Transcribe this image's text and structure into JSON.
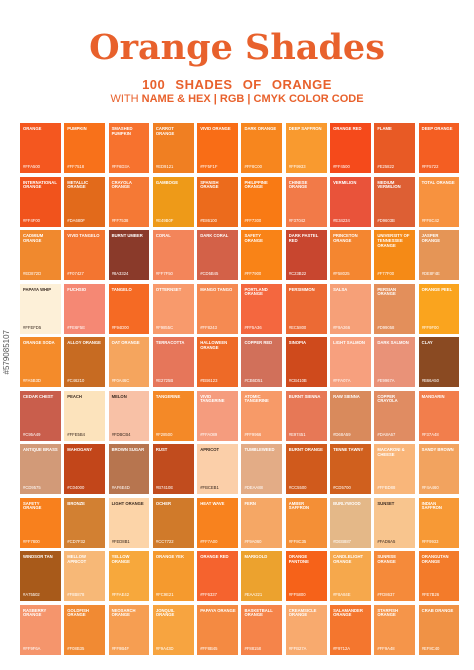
{
  "header": {
    "title": "Orange Shades",
    "count": "100",
    "subtitle": "SHADES OF ORANGE",
    "with_label": "WITH",
    "codes_label": "NAME & HEX | RGB | CMYK COLOR CODE"
  },
  "stock_id": "#579085107",
  "swatches": [
    {
      "name": "ORANGE",
      "hex": "#FFA500",
      "color": "#f4571f",
      "light": false
    },
    {
      "name": "PUMPKIN",
      "hex": "#FF7518",
      "color": "#f8711a",
      "light": false
    },
    {
      "name": "SMASHED PUMPKIN",
      "hex": "#FF6D3A",
      "color": "#f7722e",
      "light": false
    },
    {
      "name": "CARROT ORANGE",
      "hex": "#ED9121",
      "color": "#f07f22",
      "light": false
    },
    {
      "name": "VIVID ORANGE",
      "hex": "#FF5F1F",
      "color": "#f96d16",
      "light": false
    },
    {
      "name": "DARK ORANGE",
      "hex": "#FF8C00",
      "color": "#f7861e",
      "light": false
    },
    {
      "name": "DEEP SAFFRON",
      "hex": "#FF9933",
      "color": "#f99a2f",
      "light": false
    },
    {
      "name": "ORANGE RED",
      "hex": "#FF4500",
      "color": "#f54a1b",
      "light": false
    },
    {
      "name": "FLAME",
      "hex": "#E25822",
      "color": "#e85a25",
      "light": false
    },
    {
      "name": "DEEP ORANGE",
      "hex": "#FF5722",
      "color": "#f45e22",
      "light": false
    },
    {
      "name": "INTERNATIONAL ORANGE",
      "hex": "#FF4F00",
      "color": "#f1531c",
      "light": false
    },
    {
      "name": "METALLIC ORANGE",
      "hex": "#DA680F",
      "color": "#e26a1b",
      "light": false
    },
    {
      "name": "CRAYOLA ORANGE",
      "hex": "#FF7538",
      "color": "#f57935",
      "light": false
    },
    {
      "name": "GAMBOGE",
      "hex": "#E49B0F",
      "color": "#ee9a18",
      "light": false
    },
    {
      "name": "SPANISH ORANGE",
      "hex": "#E86100",
      "color": "#ec6b1c",
      "light": false
    },
    {
      "name": "PHILIPPINE ORANGE",
      "hex": "#FF7300",
      "color": "#f97a14",
      "light": false
    },
    {
      "name": "CHINESE ORANGE",
      "hex": "#F37042",
      "color": "#f27a48",
      "light": false
    },
    {
      "name": "VERMILION",
      "hex": "#E34234",
      "color": "#e9533a",
      "light": false
    },
    {
      "name": "MEDIUM VERMILION",
      "hex": "#D9603B",
      "color": "#dd5f34",
      "light": false
    },
    {
      "name": "TOTAL ORANGE",
      "hex": "#FF8C42",
      "color": "#f7923f",
      "light": false
    },
    {
      "name": "CADMIUM ORANGE",
      "hex": "#ED872D",
      "color": "#f0892e",
      "light": false
    },
    {
      "name": "VIVID TANGELO",
      "hex": "#F07427",
      "color": "#f37530",
      "light": false
    },
    {
      "name": "BURNT UMBER",
      "hex": "#8A3324",
      "color": "#8a3a2a",
      "light": false
    },
    {
      "name": "CORAL",
      "hex": "#FF7F50",
      "color": "#f3855a",
      "light": false
    },
    {
      "name": "DARK CORAL",
      "hex": "#CD5B45",
      "color": "#d36148",
      "light": false
    },
    {
      "name": "SAFETY ORANGE",
      "hex": "#FF7900",
      "color": "#f98317",
      "light": false
    },
    {
      "name": "DARK PASTEL RED",
      "hex": "#C23B22",
      "color": "#c8462f",
      "light": false
    },
    {
      "name": "PRINCETON ORANGE",
      "hex": "#F58025",
      "color": "#f48630",
      "light": false
    },
    {
      "name": "UNIVERSITY OF TENNESSEE ORANGE",
      "hex": "#F77F00",
      "color": "#f58a16",
      "light": false
    },
    {
      "name": "JASPER ORANGE",
      "hex": "#DE8F4E",
      "color": "#e59556",
      "light": false
    },
    {
      "name": "PAPAYA WHIP",
      "hex": "#FFEFD5",
      "color": "#fdf0d8",
      "light": true
    },
    {
      "name": "FUCHSIO",
      "hex": "#FE6F5E",
      "color": "#f58874",
      "light": false
    },
    {
      "name": "TANGELO",
      "hex": "#F94D00",
      "color": "#f56a24",
      "light": false
    },
    {
      "name": "OTTERNSET",
      "hex": "#F9855C",
      "color": "#f89a6c",
      "light": false
    },
    {
      "name": "MANGO TANGO",
      "hex": "#FF8243",
      "color": "#f58a52",
      "light": false
    },
    {
      "name": "PORTLAND ORANGE",
      "hex": "#FF5A36",
      "color": "#f4673f",
      "light": false
    },
    {
      "name": "PERSIMMON",
      "hex": "#EC5800",
      "color": "#ec6a34",
      "light": false
    },
    {
      "name": "SALSA",
      "hex": "#F9A266",
      "color": "#f6a078",
      "light": false
    },
    {
      "name": "PERSIAN ORANGE",
      "hex": "#D99058",
      "color": "#e38f5b",
      "light": false
    },
    {
      "name": "ORANGE PEEL",
      "hex": "#FF9F00",
      "color": "#faa41e",
      "light": false
    },
    {
      "name": "ORANGE SODA",
      "hex": "#FA5B3D",
      "color": "#f48b2a",
      "light": false
    },
    {
      "name": "ALLOY ORANGE",
      "hex": "#C46210",
      "color": "#c76b22",
      "light": false
    },
    {
      "name": "OAT ORANGE",
      "hex": "#F0A46C",
      "color": "#f5a55e",
      "light": false
    },
    {
      "name": "TERRACOTTA",
      "hex": "#E2725B",
      "color": "#e6765a",
      "light": false
    },
    {
      "name": "HALLOWEEN ORANGE",
      "hex": "#EB6123",
      "color": "#ee6a27",
      "light": false
    },
    {
      "name": "COPPER RED",
      "hex": "#CB6D51",
      "color": "#d1705a",
      "light": false
    },
    {
      "name": "SINOPIA",
      "hex": "#CB410B",
      "color": "#cf4a1c",
      "light": false
    },
    {
      "name": "LIGHT SALMON",
      "hex": "#FFA07A",
      "color": "#f7a07e",
      "light": false
    },
    {
      "name": "DARK SALMON",
      "hex": "#E9967A",
      "color": "#e99278",
      "light": false
    },
    {
      "name": "CLAY",
      "hex": "#B66A50",
      "color": "#8a4a22",
      "light": false
    },
    {
      "name": "CEDAR CHEST",
      "hex": "#C95A49",
      "color": "#c95e4c",
      "light": false
    },
    {
      "name": "PEACH",
      "hex": "#FFE5B4",
      "color": "#fce3bc",
      "light": true
    },
    {
      "name": "MELON",
      "hex": "#FDBCB4",
      "color": "#f8c1a6",
      "light": true
    },
    {
      "name": "TANGERINE",
      "hex": "#F28500",
      "color": "#f48927",
      "light": false
    },
    {
      "name": "VIVID TANGERINE",
      "hex": "#FFA089",
      "color": "#f59c7e",
      "light": false
    },
    {
      "name": "ATOMIC TANGERINE",
      "hex": "#FF9966",
      "color": "#f79a68",
      "light": false
    },
    {
      "name": "BURNT SIENNA",
      "hex": "#E97451",
      "color": "#e77856",
      "light": false
    },
    {
      "name": "RAW SIENNA",
      "hex": "#D68A59",
      "color": "#d98a5c",
      "light": false
    },
    {
      "name": "COPPER CRAYOLA",
      "hex": "#DA8A67",
      "color": "#e08c62",
      "light": false
    },
    {
      "name": "MANDARIN",
      "hex": "#F37A48",
      "color": "#f27e4c",
      "light": false
    },
    {
      "name": "ANTIQUE BRASS",
      "hex": "#CD9575",
      "color": "#d29a78",
      "light": false
    },
    {
      "name": "MAHOGANY",
      "hex": "#C04000",
      "color": "#c2461a",
      "light": false
    },
    {
      "name": "BROWN SUGAR",
      "hex": "#AF6E4D",
      "color": "#b7754f",
      "light": false
    },
    {
      "name": "RUST",
      "hex": "#B7410E",
      "color": "#c14c1e",
      "light": false
    },
    {
      "name": "APRICOT",
      "hex": "#FBCEB1",
      "color": "#fbcfa9",
      "light": true
    },
    {
      "name": "TUMBLEWEED",
      "hex": "#DEAA88",
      "color": "#e3ac86",
      "light": false
    },
    {
      "name": "BURNT ORANGE",
      "hex": "#CC5500",
      "color": "#d05a1c",
      "light": false
    },
    {
      "name": "TENNE TAWNY",
      "hex": "#CD5700",
      "color": "#d0601e",
      "light": false
    },
    {
      "name": "MACARONI & CHEESE",
      "hex": "#FFBD88",
      "color": "#f9b67a",
      "light": false
    },
    {
      "name": "SANDY BROWN",
      "hex": "#F4A460",
      "color": "#f2a35f",
      "light": false
    },
    {
      "name": "SAFETY ORANGE",
      "hex": "#FF7800",
      "color": "#f8801d",
      "light": false
    },
    {
      "name": "BRONZE",
      "hex": "#CD7F32",
      "color": "#d28032",
      "light": false
    },
    {
      "name": "LIGHT ORANGE",
      "hex": "#FED8B1",
      "color": "#fcd4a8",
      "light": true
    },
    {
      "name": "OCHER",
      "hex": "#CC7722",
      "color": "#d07a2a",
      "light": false
    },
    {
      "name": "HEAT WAVE",
      "hex": "#FF7A00",
      "color": "#f8821e",
      "light": false
    },
    {
      "name": "FERN",
      "hex": "#F9A060",
      "color": "#f5a765",
      "light": false
    },
    {
      "name": "AMBER SAFFRON",
      "hex": "#FF8C35",
      "color": "#f48f36",
      "light": false
    },
    {
      "name": "BURLYWOOD",
      "hex": "#DEB887",
      "color": "#e4b888",
      "light": false
    },
    {
      "name": "SUNSET",
      "hex": "#FAD6A5",
      "color": "#f8c58e",
      "light": true
    },
    {
      "name": "INDIAN SAFFRON",
      "hex": "#FF9933",
      "color": "#f79935",
      "light": false
    },
    {
      "name": "WINDSOR TAN",
      "hex": "#A75502",
      "color": "#a85a1a",
      "light": false
    },
    {
      "name": "MELLOW APRICOT",
      "hex": "#F8B878",
      "color": "#f7b877",
      "light": false
    },
    {
      "name": "YELLOW ORANGE",
      "hex": "#FFAE42",
      "color": "#f7a83c",
      "light": false
    },
    {
      "name": "ORANGE YEK",
      "hex": "#FC9E21",
      "color": "#f59a2e",
      "light": false
    },
    {
      "name": "ORANGE RED",
      "hex": "#FF6337",
      "color": "#f5632e",
      "light": false
    },
    {
      "name": "MARIGOLD",
      "hex": "#EAA221",
      "color": "#eca22e",
      "light": false
    },
    {
      "name": "ORANGE PANTONE",
      "hex": "#FF5800",
      "color": "#f66219",
      "light": false
    },
    {
      "name": "CANDLELIGHT ORANGE",
      "hex": "#F8A84E",
      "color": "#f6a84c",
      "light": false
    },
    {
      "name": "SUNRISE ORANGE",
      "hex": "#FD8637",
      "color": "#f58a3a",
      "light": false
    },
    {
      "name": "ORANGUTAN ORANGE",
      "hex": "#FE7B26",
      "color": "#f37b2a",
      "light": false
    },
    {
      "name": "RASBERRY ORANGE",
      "hex": "#FF9F6A",
      "color": "#f5956c",
      "light": false
    },
    {
      "name": "GOLDFISH ORANGE",
      "hex": "#F08B35",
      "color": "#f18a33",
      "light": false
    },
    {
      "name": "NEOSARCH ORANGE",
      "hex": "#FF9B4F",
      "color": "#f69e52",
      "light": false
    },
    {
      "name": "JONQUIL ORANGE",
      "hex": "#F9A43D",
      "color": "#f7a440",
      "light": false
    },
    {
      "name": "PAPAYA ORANGE",
      "hex": "#FF8B45",
      "color": "#f48a42",
      "light": false
    },
    {
      "name": "BASKETBALL ORANGE",
      "hex": "#F88158",
      "color": "#f5844a",
      "light": false
    },
    {
      "name": "CREAMSICLE ORANGE",
      "hex": "#FFB27A",
      "color": "#f8aa6e",
      "light": false
    },
    {
      "name": "SALAMANDER ORANGE",
      "hex": "#F9712A",
      "color": "#f4762e",
      "light": false
    },
    {
      "name": "STARFISH ORANGE",
      "hex": "#FF9A48",
      "color": "#f5954a",
      "light": false
    },
    {
      "name": "CRAB ORANGE",
      "hex": "#EF8C40",
      "color": "#f09245",
      "light": false
    }
  ]
}
